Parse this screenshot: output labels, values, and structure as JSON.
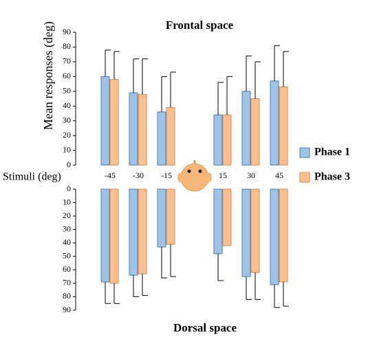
{
  "chart_data": [
    {
      "type": "bar",
      "title": "Frontal space",
      "ylabel": "Mean responses (deg)",
      "xlabel": "Stimuli (deg)",
      "categories": [
        "-45",
        "-30",
        "-15",
        "15",
        "30",
        "45"
      ],
      "series": [
        {
          "name": "Phase 1",
          "color": "#9dc3e6",
          "values": [
            60,
            49,
            36,
            34,
            50,
            57
          ],
          "errors": [
            18,
            23,
            24,
            22,
            24,
            24
          ]
        },
        {
          "name": "Phase 3",
          "color": "#fac090",
          "values": [
            58,
            48,
            39,
            34,
            45,
            53
          ],
          "errors": [
            19,
            24,
            24,
            26,
            25,
            24
          ]
        }
      ],
      "ylim": [
        0,
        90
      ],
      "yticks": [
        0,
        10,
        20,
        30,
        40,
        50,
        60,
        70,
        80,
        90
      ],
      "legend": "right"
    },
    {
      "type": "bar",
      "title": "Dorsal space",
      "direction": "down",
      "series": [
        {
          "color": "#9dc3e6",
          "values": [
            69,
            64,
            43,
            48,
            65,
            71
          ],
          "errors": [
            16,
            16,
            23,
            20,
            17,
            17
          ]
        },
        {
          "color": "#fac090",
          "values": [
            70,
            63,
            41,
            42,
            62,
            69
          ],
          "errors": [
            15,
            16,
            24,
            null,
            20,
            18
          ]
        }
      ],
      "ylim": [
        0,
        90
      ],
      "yticks": [
        0,
        10,
        20,
        30,
        40,
        50,
        60,
        70,
        80,
        90
      ]
    }
  ]
}
